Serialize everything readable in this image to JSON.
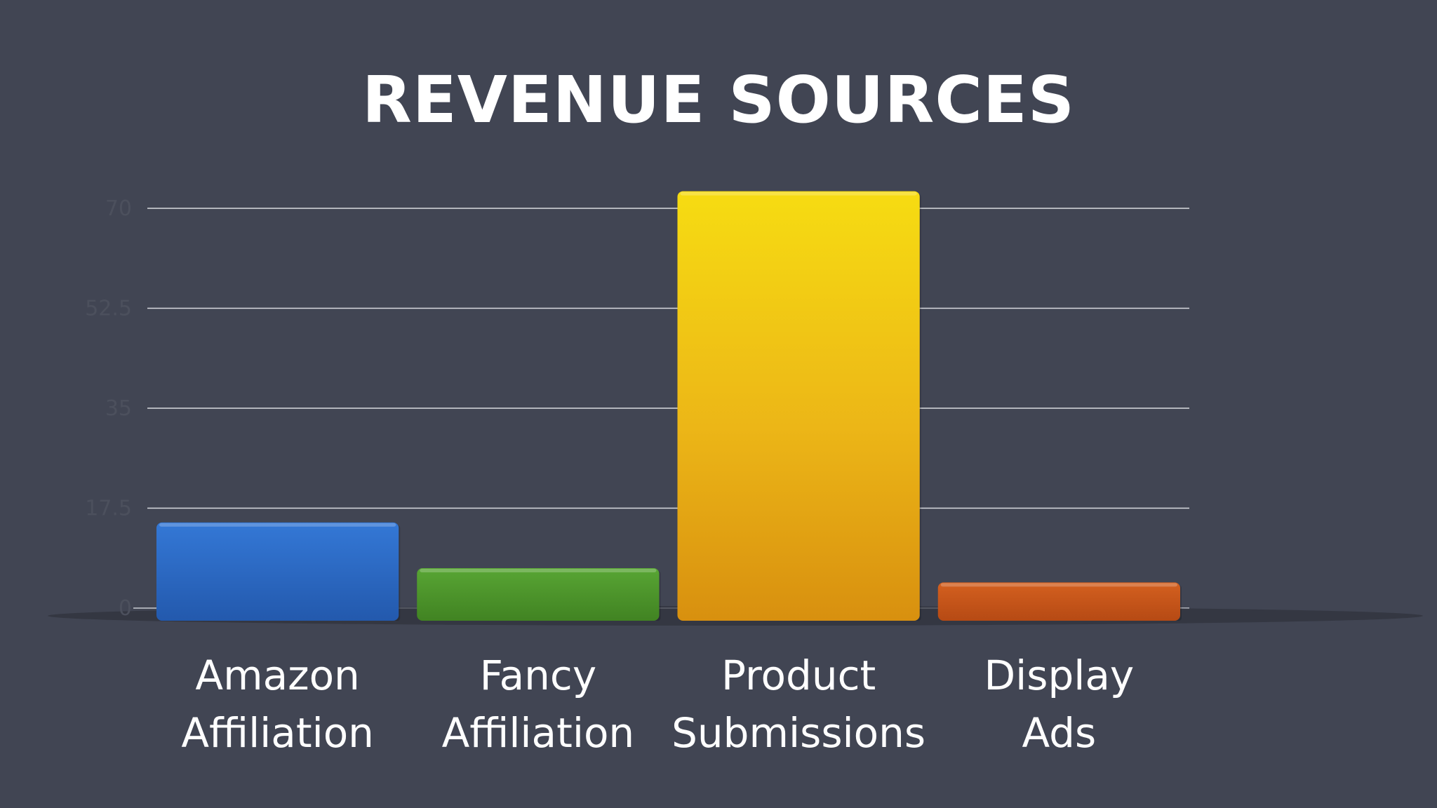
{
  "chart_data": {
    "type": "bar",
    "title": "REVENUE SOURCES",
    "xlabel": "",
    "ylabel": "",
    "ylim": [
      0,
      70
    ],
    "yticks": [
      "0",
      "17.5",
      "35",
      "52.5",
      "70"
    ],
    "ytick_values": [
      0,
      17.5,
      35,
      52.5,
      70
    ],
    "grid": true,
    "legend": "none",
    "categories": [
      "Amazon\nAffiliation",
      "Fancy\nAffiliation",
      "Product\nSubmissions",
      "Display\nAds"
    ],
    "values": [
      15,
      7,
      73,
      4.5
    ],
    "colors": [
      "#2a67c0",
      "#4b9229",
      "#ecb714",
      "#c4541a"
    ]
  }
}
